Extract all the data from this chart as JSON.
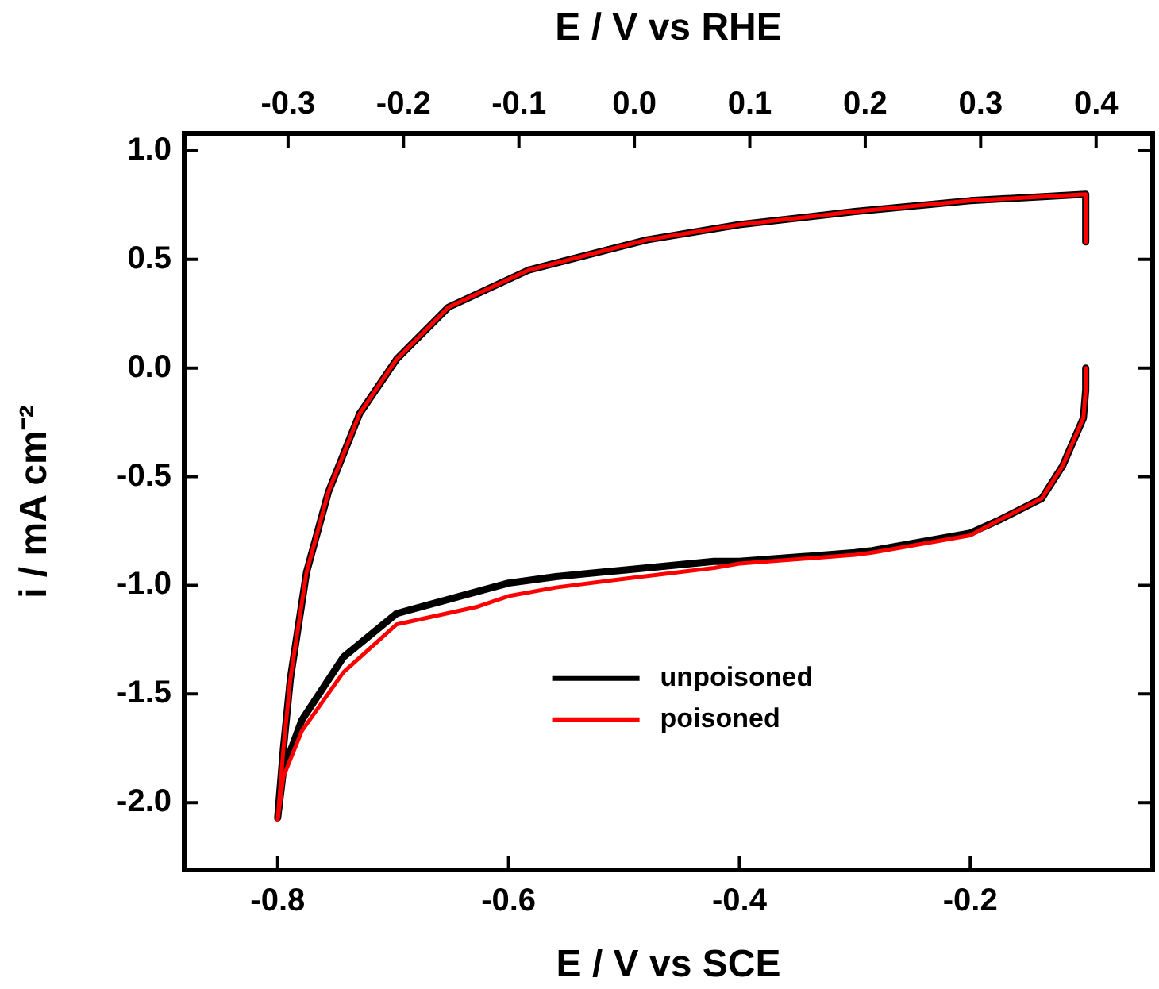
{
  "chart_data": {
    "type": "line",
    "xlabel": "E / V vs SCE",
    "x2label": "E / V vs RHE",
    "ylabel": "i / mA cm⁻²",
    "xlim": [
      -0.881,
      -0.042
    ],
    "xticks": [
      -0.8,
      -0.6,
      -0.4,
      -0.2
    ],
    "x2lim": [
      -0.39,
      0.449
    ],
    "x2ticks": [
      -0.3,
      -0.2,
      -0.1,
      {
        "value": 0,
        "label": "0.0"
      },
      0.1,
      0.2,
      0.3,
      0.4
    ],
    "ylim": [
      -2.31,
      1.08
    ],
    "yticks": [
      {
        "value": 1,
        "label": "1.0"
      },
      0.5,
      {
        "value": 0,
        "label": "0.0"
      },
      -0.5,
      {
        "value": -1,
        "label": "-1.0"
      },
      -1.5,
      {
        "value": -2,
        "label": "-2.0"
      }
    ],
    "grid": false,
    "legend": "bottom",
    "line_style": "solid",
    "marker": "none",
    "series": [
      {
        "name": "unpoisoned",
        "color": "#000000",
        "x": [
          -0.1,
          -0.1,
          -0.102,
          -0.12,
          -0.138,
          -0.175,
          -0.2,
          -0.285,
          -0.3,
          -0.4,
          -0.422,
          -0.5,
          -0.559,
          -0.6,
          -0.628,
          -0.697,
          -0.743,
          -0.779,
          -0.795,
          -0.8,
          -0.795,
          -0.789,
          -0.775,
          -0.756,
          -0.729,
          -0.697,
          -0.652,
          -0.583,
          -0.532,
          -0.48,
          -0.4,
          -0.3,
          -0.2,
          -0.1,
          -0.1
        ],
        "values": [
          0.0,
          -0.1,
          -0.23,
          -0.45,
          -0.6,
          -0.7,
          -0.76,
          -0.84,
          -0.85,
          -0.89,
          -0.89,
          -0.93,
          -0.96,
          -0.99,
          -1.03,
          -1.13,
          -1.33,
          -1.62,
          -1.85,
          -2.07,
          -1.75,
          -1.43,
          -0.94,
          -0.57,
          -0.21,
          0.04,
          0.28,
          0.45,
          0.52,
          0.59,
          0.66,
          0.72,
          0.77,
          0.8,
          0.58
        ]
      },
      {
        "name": "poisoned",
        "color": "#ff0000",
        "x": [
          -0.1,
          -0.1,
          -0.102,
          -0.12,
          -0.138,
          -0.175,
          -0.2,
          -0.285,
          -0.3,
          -0.4,
          -0.422,
          -0.5,
          -0.559,
          -0.6,
          -0.628,
          -0.697,
          -0.743,
          -0.779,
          -0.795,
          -0.8,
          -0.795,
          -0.789,
          -0.775,
          -0.756,
          -0.729,
          -0.697,
          -0.652,
          -0.583,
          -0.532,
          -0.48,
          -0.4,
          -0.3,
          -0.2,
          -0.1,
          -0.1
        ],
        "values": [
          0.0,
          -0.1,
          -0.23,
          -0.45,
          -0.6,
          -0.7,
          -0.77,
          -0.85,
          -0.86,
          -0.9,
          -0.92,
          -0.97,
          -1.01,
          -1.05,
          -1.1,
          -1.18,
          -1.4,
          -1.67,
          -1.88,
          -2.08,
          -1.75,
          -1.43,
          -0.94,
          -0.57,
          -0.21,
          0.04,
          0.28,
          0.45,
          0.52,
          0.59,
          0.66,
          0.72,
          0.77,
          0.8,
          0.58
        ]
      }
    ]
  }
}
